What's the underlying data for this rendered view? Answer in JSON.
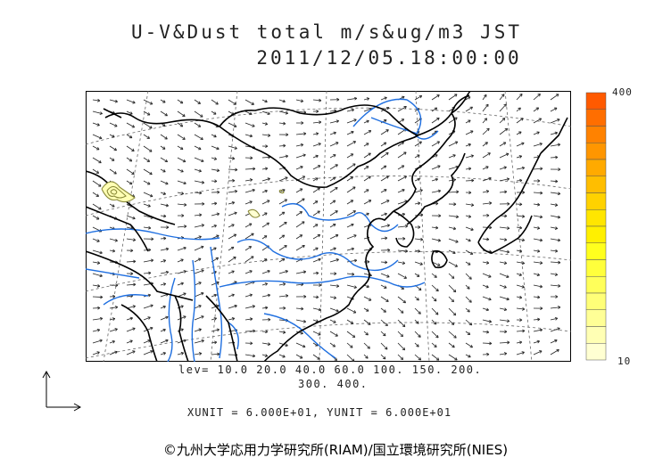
{
  "header": {
    "title_line1": "U-V&Dust total m/s&ug/m3 JST",
    "title_line2": "2011/12/05.18:00:00"
  },
  "colorbar": {
    "top_label": "400",
    "bottom_label": "10",
    "colors": [
      "#ff5a00",
      "#ff6e00",
      "#ff8200",
      "#ff9600",
      "#ffaa00",
      "#ffbe00",
      "#ffd200",
      "#ffe600",
      "#fff000",
      "#ffff1e",
      "#ffff3c",
      "#ffff5a",
      "#ffff78",
      "#ffff96",
      "#ffffb4",
      "#ffffd2"
    ]
  },
  "legend": {
    "levels_line1": "lev= 10.0 20.0 40.0 60.0 100. 150. 200.",
    "levels_line2": "300. 400.",
    "unit_line": "XUNIT = 6.000E+01, YUNIT = 6.000E+01"
  },
  "footer": {
    "credit": "©九州大学応用力学研究所(RIAM)/国立環境研究所(NIES)"
  },
  "map_style": {
    "coast_color": "#000000",
    "river_color": "#1f6fe0",
    "grid_color": "#555555",
    "arrow_color": "#222222",
    "dust_contour_color": "#8a8a3a"
  }
}
